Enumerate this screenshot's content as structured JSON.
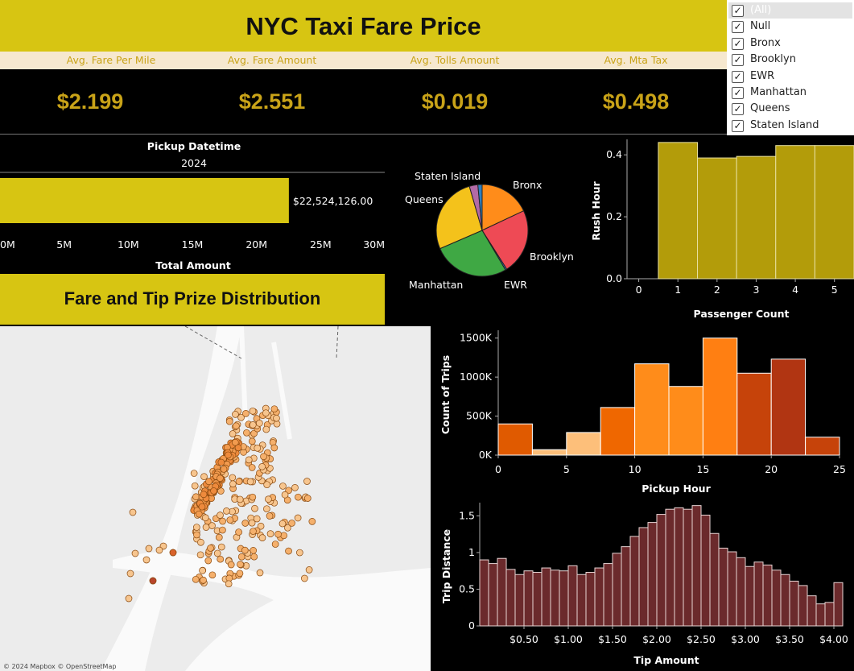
{
  "header": {
    "title": "NYC Taxi Fare Price"
  },
  "kpis": [
    {
      "label": "Avg. Fare Per Mile",
      "value": "$2.199"
    },
    {
      "label": "Avg. Fare Amount",
      "value": "$2.551"
    },
    {
      "label": "Avg. Tolls Amount",
      "value": "$0.019"
    },
    {
      "label": "Avg. Mta Tax",
      "value": "$0.498"
    }
  ],
  "filter": {
    "items": [
      {
        "label": "(All)",
        "checked": true,
        "selected": true
      },
      {
        "label": "Null",
        "checked": true
      },
      {
        "label": "Bronx",
        "checked": true
      },
      {
        "label": "Brooklyn",
        "checked": true
      },
      {
        "label": "EWR",
        "checked": true
      },
      {
        "label": "Manhattan",
        "checked": true
      },
      {
        "label": "Queens",
        "checked": true
      },
      {
        "label": "Staten Island",
        "checked": true
      }
    ]
  },
  "fare_section": {
    "title": "Fare and Tip Prize Distribution"
  },
  "map": {
    "attribution": "© 2024 Mapbox © OpenStreetMap"
  },
  "colors": {
    "banner": "#d7c512",
    "kpi_text": "#c9a318",
    "total_bar": "#d7c512",
    "rush_bar": "#b39c0a",
    "tip_bar": "#6b2a2c",
    "pie_bronx": "#ff8c1a",
    "pie_brooklyn": "#ee4a55",
    "pie_manhattan": "#3fa844",
    "pie_queens": "#f4c21b",
    "pie_staten_island": "#b36aa6",
    "pie_ewr": "#2e7fbf"
  },
  "chart_data": [
    {
      "id": "total-amount",
      "type": "bar",
      "orientation": "horizontal",
      "title": "Pickup Datetime",
      "categories": [
        "2024"
      ],
      "values": [
        22524126.0
      ],
      "value_label": "$22,524,126.00",
      "xlabel": "Total Amount",
      "xlim": [
        0,
        30000000
      ],
      "xticks": [
        0,
        5000000,
        10000000,
        15000000,
        20000000,
        25000000,
        30000000
      ],
      "xtick_labels": [
        "0M",
        "5M",
        "10M",
        "15M",
        "20M",
        "25M",
        "30M"
      ]
    },
    {
      "id": "borough-pie",
      "type": "pie",
      "labels": [
        "Bronx",
        "Brooklyn",
        "EWR",
        "Manhattan",
        "Queens",
        "Staten Island",
        "Null"
      ],
      "values": [
        18,
        23,
        0.5,
        27,
        27,
        3,
        1.5
      ],
      "label_visible": [
        true,
        true,
        true,
        true,
        true,
        true,
        false
      ]
    },
    {
      "id": "rush-hour",
      "type": "bar",
      "xlabel": "Passenger Count",
      "ylabel": "Rush Hour",
      "x": [
        1,
        2,
        3,
        4,
        5
      ],
      "values": [
        0.44,
        0.39,
        0.395,
        0.43,
        0.43
      ],
      "ylim": [
        0,
        0.45
      ],
      "yticks": [
        0.0,
        0.2,
        0.4
      ],
      "ytick_labels": [
        "0.0",
        "0.2",
        "0.4"
      ],
      "xlim": [
        -0.3,
        5.5
      ],
      "xticks": [
        0,
        1,
        2,
        3,
        4,
        5
      ],
      "xtick_labels": [
        "0",
        "1",
        "2",
        "3",
        "4",
        "5"
      ]
    },
    {
      "id": "pickup-hour",
      "type": "bar",
      "xlabel": "Pickup Hour",
      "ylabel": "Count of Trips",
      "bins": [
        [
          0,
          2.5
        ],
        [
          2.5,
          5
        ],
        [
          5,
          7.5
        ],
        [
          7.5,
          10
        ],
        [
          10,
          12.5
        ],
        [
          12.5,
          15
        ],
        [
          15,
          17.5
        ],
        [
          17.5,
          20
        ],
        [
          20,
          22.5
        ],
        [
          22.5,
          25
        ]
      ],
      "values": [
        400000,
        70000,
        290000,
        610000,
        1170000,
        880000,
        1500000,
        1050000,
        1230000,
        230000
      ],
      "bar_colors": [
        "#e05a00",
        "#fdbf7a",
        "#fdbf7a",
        "#ef6700",
        "#ff8c1a",
        "#ff8c1a",
        "#ff7f12",
        "#c6430a",
        "#b13512",
        "#c6430a"
      ],
      "ylim": [
        0,
        1600000
      ],
      "yticks": [
        0,
        500000,
        1000000,
        1500000
      ],
      "ytick_labels": [
        "0K",
        "500K",
        "1000K",
        "1500K"
      ],
      "xlim": [
        0,
        25
      ],
      "xticks": [
        0,
        5,
        10,
        15,
        20,
        25
      ],
      "xtick_labels": [
        "0",
        "5",
        "10",
        "15",
        "20",
        "25"
      ]
    },
    {
      "id": "tip-amount",
      "type": "bar",
      "xlabel": "Tip Amount",
      "ylabel": "Trip Distance",
      "bin_start": 0.0,
      "bin_width": 0.1,
      "values": [
        0.9,
        0.85,
        0.92,
        0.77,
        0.7,
        0.75,
        0.73,
        0.79,
        0.76,
        0.75,
        0.82,
        0.7,
        0.73,
        0.79,
        0.85,
        0.99,
        1.08,
        1.22,
        1.34,
        1.41,
        1.52,
        1.59,
        1.61,
        1.59,
        1.64,
        1.51,
        1.26,
        1.06,
        1.01,
        0.93,
        0.81,
        0.87,
        0.83,
        0.76,
        0.7,
        0.61,
        0.55,
        0.41,
        0.3,
        0.32,
        0.59
      ],
      "ylim": [
        0,
        1.68
      ],
      "yticks": [
        0,
        0.5,
        1.0,
        1.5
      ],
      "ytick_labels": [
        "0",
        "0.5",
        "1",
        "1.5"
      ],
      "xlim": [
        0,
        4.1
      ],
      "xticks": [
        0.5,
        1.0,
        1.5,
        2.0,
        2.5,
        3.0,
        3.5,
        4.0
      ],
      "xtick_labels": [
        "$0.50",
        "$1.00",
        "$1.50",
        "$2.00",
        "$2.50",
        "$3.00",
        "$3.50",
        "$4.00"
      ]
    }
  ]
}
